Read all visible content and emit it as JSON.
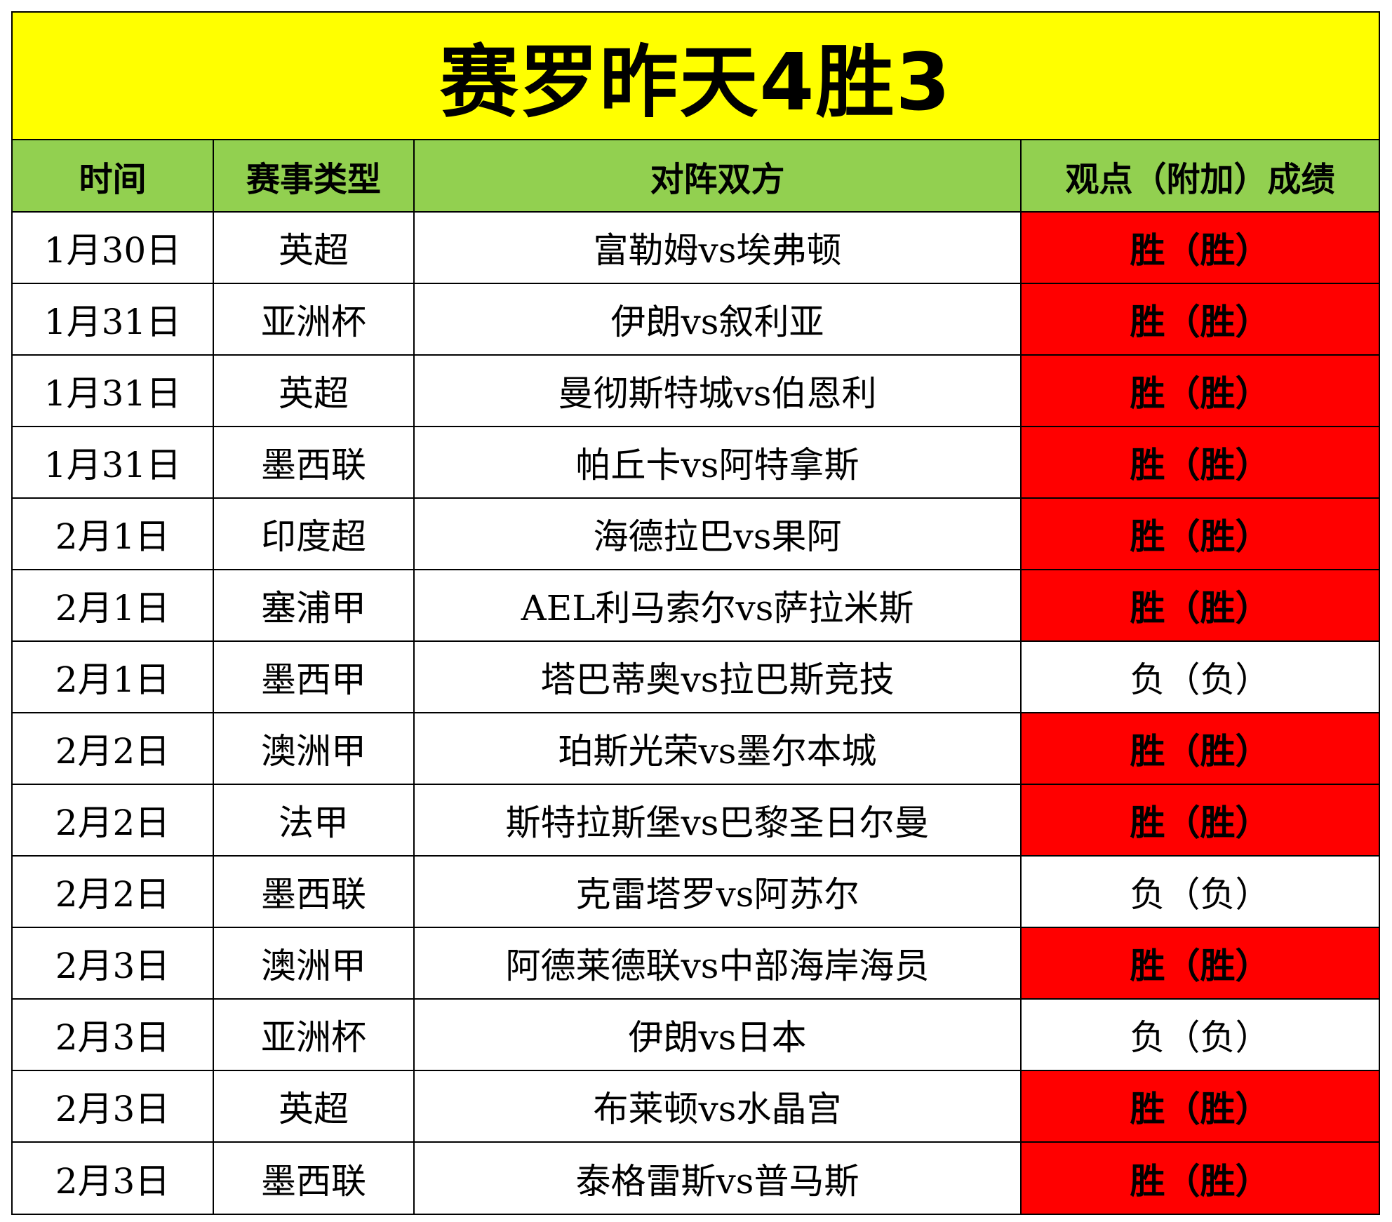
{
  "title": "赛罗昨天4胜3",
  "colors": {
    "title_background": "#ffff00",
    "header_background": "#92d050",
    "win_background": "#ff0000",
    "loss_background": "#ffffff"
  },
  "headers": [
    "时间",
    "赛事类型",
    "对阵双方",
    "观点（附加）成绩"
  ],
  "rows": [
    {
      "date": "1月30日",
      "league": "英超",
      "match": "富勒姆vs埃弗顿",
      "result": "胜（胜）",
      "outcome": "win"
    },
    {
      "date": "1月31日",
      "league": "亚洲杯",
      "match": "伊朗vs叙利亚",
      "result": "胜（胜）",
      "outcome": "win"
    },
    {
      "date": "1月31日",
      "league": "英超",
      "match": "曼彻斯特城vs伯恩利",
      "result": "胜（胜）",
      "outcome": "win"
    },
    {
      "date": "1月31日",
      "league": "墨西联",
      "match": "帕丘卡vs阿特拿斯",
      "result": "胜（胜）",
      "outcome": "win"
    },
    {
      "date": "2月1日",
      "league": "印度超",
      "match": "海德拉巴vs果阿",
      "result": "胜（胜）",
      "outcome": "win"
    },
    {
      "date": "2月1日",
      "league": "塞浦甲",
      "match": "AEL利马索尔vs萨拉米斯",
      "result": "胜（胜）",
      "outcome": "win"
    },
    {
      "date": "2月1日",
      "league": "墨西甲",
      "match": "塔巴蒂奥vs拉巴斯竞技",
      "result": "负（负）",
      "outcome": "loss"
    },
    {
      "date": "2月2日",
      "league": "澳洲甲",
      "match": "珀斯光荣vs墨尔本城",
      "result": "胜（胜）",
      "outcome": "win"
    },
    {
      "date": "2月2日",
      "league": "法甲",
      "match": "斯特拉斯堡vs巴黎圣日尔曼",
      "result": "胜（胜）",
      "outcome": "win"
    },
    {
      "date": "2月2日",
      "league": "墨西联",
      "match": "克雷塔罗vs阿苏尔",
      "result": "负（负）",
      "outcome": "loss"
    },
    {
      "date": "2月3日",
      "league": "澳洲甲",
      "match": "阿德莱德联vs中部海岸海员",
      "result": "胜（胜）",
      "outcome": "win"
    },
    {
      "date": "2月3日",
      "league": "亚洲杯",
      "match": "伊朗vs日本",
      "result": "负（负）",
      "outcome": "loss"
    },
    {
      "date": "2月3日",
      "league": "英超",
      "match": "布莱顿vs水晶宫",
      "result": "胜（胜）",
      "outcome": "win"
    },
    {
      "date": "2月3日",
      "league": "墨西联",
      "match": "泰格雷斯vs普马斯",
      "result": "胜（胜）",
      "outcome": "win"
    }
  ]
}
